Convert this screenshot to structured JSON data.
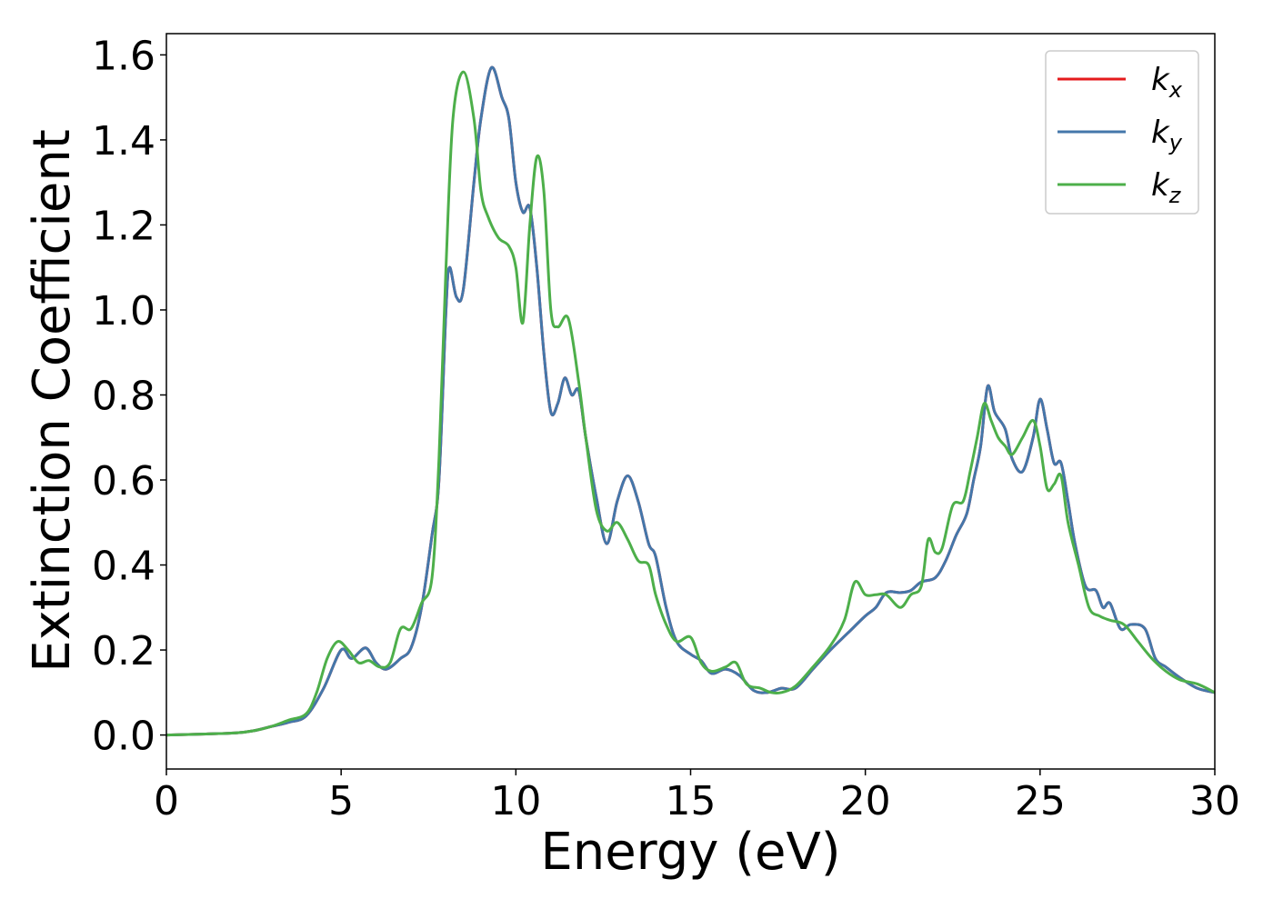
{
  "chart_data": {
    "type": "line",
    "xlabel": "Energy (eV)",
    "ylabel": "Extinction Coefficient",
    "xlim": [
      0,
      30
    ],
    "ylim": [
      -0.08,
      1.65
    ],
    "xticks": [
      0,
      5,
      10,
      15,
      20,
      25,
      30
    ],
    "xtick_labels": [
      "0",
      "5",
      "10",
      "15",
      "20",
      "25",
      "30"
    ],
    "yticks": [
      0.0,
      0.2,
      0.4,
      0.6,
      0.8,
      1.0,
      1.2,
      1.4,
      1.6
    ],
    "ytick_labels": [
      "0.0",
      "0.2",
      "0.4",
      "0.6",
      "0.8",
      "1.0",
      "1.2",
      "1.4",
      "1.6"
    ],
    "grid": false,
    "legend_position": "top-right",
    "series": [
      {
        "name": "k",
        "subscript": "x",
        "color": "#e41a1c",
        "x": [
          0,
          1,
          2,
          2.5,
          3,
          3.5,
          4,
          4.5,
          5,
          5.3,
          5.7,
          6,
          6.3,
          6.7,
          7,
          7.3,
          7.6,
          7.8,
          8,
          8.1,
          8.3,
          8.5,
          8.8,
          9,
          9.3,
          9.6,
          9.8,
          10,
          10.2,
          10.4,
          10.6,
          10.8,
          11,
          11.2,
          11.4,
          11.6,
          11.8,
          12,
          12.3,
          12.6,
          12.9,
          13.2,
          13.5,
          13.8,
          14,
          14.3,
          14.6,
          15,
          15.3,
          15.6,
          16,
          16.4,
          16.8,
          17.2,
          17.6,
          18,
          18.5,
          19,
          19.5,
          20,
          20.3,
          20.6,
          21,
          21.3,
          21.6,
          22,
          22.3,
          22.6,
          22.9,
          23.1,
          23.3,
          23.5,
          23.7,
          24,
          24.2,
          24.5,
          24.8,
          25,
          25.2,
          25.4,
          25.6,
          25.8,
          26,
          26.3,
          26.6,
          26.8,
          27,
          27.3,
          27.6,
          28,
          28.3,
          28.6,
          29,
          29.5,
          30
        ],
        "y": [
          0.0,
          0.002,
          0.005,
          0.01,
          0.02,
          0.03,
          0.045,
          0.11,
          0.2,
          0.18,
          0.205,
          0.17,
          0.155,
          0.18,
          0.205,
          0.3,
          0.47,
          0.6,
          1.0,
          1.1,
          1.03,
          1.05,
          1.3,
          1.45,
          1.57,
          1.5,
          1.45,
          1.3,
          1.23,
          1.24,
          1.1,
          0.9,
          0.76,
          0.78,
          0.84,
          0.8,
          0.81,
          0.7,
          0.56,
          0.45,
          0.55,
          0.61,
          0.55,
          0.45,
          0.42,
          0.3,
          0.22,
          0.19,
          0.175,
          0.145,
          0.155,
          0.14,
          0.105,
          0.1,
          0.11,
          0.11,
          0.155,
          0.2,
          0.24,
          0.28,
          0.3,
          0.335,
          0.335,
          0.34,
          0.36,
          0.37,
          0.41,
          0.47,
          0.52,
          0.6,
          0.68,
          0.82,
          0.76,
          0.72,
          0.65,
          0.62,
          0.7,
          0.79,
          0.72,
          0.64,
          0.64,
          0.55,
          0.45,
          0.35,
          0.34,
          0.3,
          0.31,
          0.25,
          0.26,
          0.25,
          0.18,
          0.16,
          0.135,
          0.11,
          0.1
        ]
      },
      {
        "name": "k",
        "subscript": "y",
        "color": "#4477aa",
        "x": [
          0,
          1,
          2,
          2.5,
          3,
          3.5,
          4,
          4.5,
          5,
          5.3,
          5.7,
          6,
          6.3,
          6.7,
          7,
          7.3,
          7.6,
          7.8,
          8,
          8.1,
          8.3,
          8.5,
          8.8,
          9,
          9.3,
          9.6,
          9.8,
          10,
          10.2,
          10.4,
          10.6,
          10.8,
          11,
          11.2,
          11.4,
          11.6,
          11.8,
          12,
          12.3,
          12.6,
          12.9,
          13.2,
          13.5,
          13.8,
          14,
          14.3,
          14.6,
          15,
          15.3,
          15.6,
          16,
          16.4,
          16.8,
          17.2,
          17.6,
          18,
          18.5,
          19,
          19.5,
          20,
          20.3,
          20.6,
          21,
          21.3,
          21.6,
          22,
          22.3,
          22.6,
          22.9,
          23.1,
          23.3,
          23.5,
          23.7,
          24,
          24.2,
          24.5,
          24.8,
          25,
          25.2,
          25.4,
          25.6,
          25.8,
          26,
          26.3,
          26.6,
          26.8,
          27,
          27.3,
          27.6,
          28,
          28.3,
          28.6,
          29,
          29.5,
          30
        ],
        "y": [
          0.0,
          0.002,
          0.005,
          0.01,
          0.02,
          0.03,
          0.045,
          0.11,
          0.2,
          0.18,
          0.205,
          0.17,
          0.155,
          0.18,
          0.205,
          0.3,
          0.47,
          0.6,
          1.0,
          1.1,
          1.03,
          1.05,
          1.3,
          1.45,
          1.57,
          1.5,
          1.45,
          1.3,
          1.23,
          1.24,
          1.1,
          0.9,
          0.76,
          0.78,
          0.84,
          0.8,
          0.81,
          0.7,
          0.56,
          0.45,
          0.55,
          0.61,
          0.55,
          0.45,
          0.42,
          0.3,
          0.22,
          0.19,
          0.175,
          0.145,
          0.155,
          0.14,
          0.105,
          0.1,
          0.11,
          0.11,
          0.155,
          0.2,
          0.24,
          0.28,
          0.3,
          0.335,
          0.335,
          0.34,
          0.36,
          0.37,
          0.41,
          0.47,
          0.52,
          0.6,
          0.68,
          0.82,
          0.76,
          0.72,
          0.65,
          0.62,
          0.7,
          0.79,
          0.72,
          0.64,
          0.64,
          0.55,
          0.45,
          0.35,
          0.34,
          0.3,
          0.31,
          0.25,
          0.26,
          0.25,
          0.18,
          0.16,
          0.135,
          0.11,
          0.1
        ]
      },
      {
        "name": "k",
        "subscript": "z",
        "color": "#4daf4a",
        "x": [
          0,
          1,
          2,
          2.5,
          3,
          3.5,
          4,
          4.3,
          4.6,
          4.9,
          5.2,
          5.5,
          5.8,
          6.1,
          6.4,
          6.7,
          7,
          7.3,
          7.6,
          7.8,
          8,
          8.2,
          8.5,
          8.8,
          9,
          9.2,
          9.5,
          9.8,
          10,
          10.2,
          10.4,
          10.6,
          10.8,
          11,
          11.2,
          11.5,
          11.8,
          12,
          12.3,
          12.6,
          12.9,
          13.2,
          13.5,
          13.8,
          14,
          14.3,
          14.6,
          15,
          15.3,
          15.6,
          16,
          16.3,
          16.6,
          17,
          17.3,
          17.6,
          18,
          18.5,
          19,
          19.4,
          19.7,
          20,
          20.3,
          20.6,
          21,
          21.3,
          21.6,
          21.8,
          22,
          22.2,
          22.5,
          22.8,
          23,
          23.2,
          23.4,
          23.6,
          23.8,
          24,
          24.2,
          24.5,
          24.8,
          25,
          25.2,
          25.4,
          25.6,
          25.8,
          26.1,
          26.4,
          26.7,
          27,
          27.4,
          27.8,
          28.2,
          28.6,
          29,
          29.5,
          30
        ],
        "y": [
          0.0,
          0.002,
          0.005,
          0.01,
          0.02,
          0.035,
          0.05,
          0.1,
          0.18,
          0.22,
          0.2,
          0.17,
          0.175,
          0.16,
          0.17,
          0.25,
          0.25,
          0.31,
          0.37,
          0.65,
          1.1,
          1.45,
          1.56,
          1.45,
          1.28,
          1.22,
          1.17,
          1.15,
          1.1,
          0.97,
          1.2,
          1.36,
          1.28,
          1.0,
          0.96,
          0.98,
          0.83,
          0.7,
          0.53,
          0.48,
          0.5,
          0.46,
          0.41,
          0.4,
          0.33,
          0.26,
          0.22,
          0.23,
          0.17,
          0.15,
          0.16,
          0.17,
          0.12,
          0.11,
          0.1,
          0.1,
          0.115,
          0.16,
          0.21,
          0.27,
          0.36,
          0.33,
          0.33,
          0.33,
          0.3,
          0.33,
          0.35,
          0.46,
          0.43,
          0.44,
          0.54,
          0.55,
          0.62,
          0.7,
          0.78,
          0.74,
          0.7,
          0.68,
          0.66,
          0.7,
          0.74,
          0.68,
          0.58,
          0.59,
          0.61,
          0.5,
          0.4,
          0.3,
          0.28,
          0.27,
          0.26,
          0.22,
          0.18,
          0.15,
          0.13,
          0.12,
          0.1
        ]
      }
    ]
  }
}
